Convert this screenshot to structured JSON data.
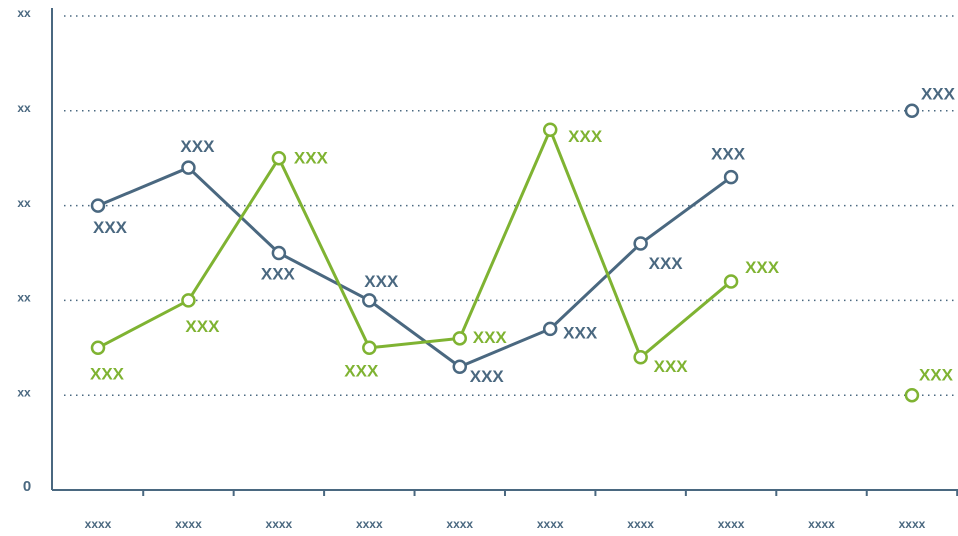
{
  "chart_data": {
    "type": "line",
    "categories": [
      "xxxx",
      "xxxx",
      "xxxx",
      "xxxx",
      "xxxx",
      "xxxx",
      "xxxx",
      "xxxx",
      "xxxx",
      "xxxx"
    ],
    "series": [
      {
        "color": "#4a6880",
        "values": [
          3.0,
          3.4,
          2.5,
          2.0,
          1.3,
          1.7,
          2.6,
          3.3,
          null,
          4.0
        ],
        "value_labels": [
          "XXX",
          "XXX",
          "XXX",
          "XXX",
          "XXX",
          "XXX",
          "XXX",
          "XXX",
          null,
          "XXX"
        ]
      },
      {
        "color": "#7fb332",
        "values": [
          1.5,
          2.0,
          3.5,
          1.5,
          1.6,
          3.8,
          1.4,
          2.2,
          null,
          1.0
        ],
        "value_labels": [
          "XXX",
          "XXX",
          "XXX",
          "XXX",
          "XXX",
          "XXX",
          "XXX",
          "XXX",
          null,
          "XXX"
        ]
      }
    ],
    "ylim": [
      0,
      5
    ],
    "yticks": [
      0,
      {
        "value": 1,
        "label": "xx"
      },
      {
        "value": 2,
        "label": "xx"
      },
      {
        "value": 3,
        "label": "xx"
      },
      {
        "value": 4,
        "label": "xx"
      },
      {
        "value": 5,
        "label": "xx"
      }
    ],
    "grid": true
  }
}
